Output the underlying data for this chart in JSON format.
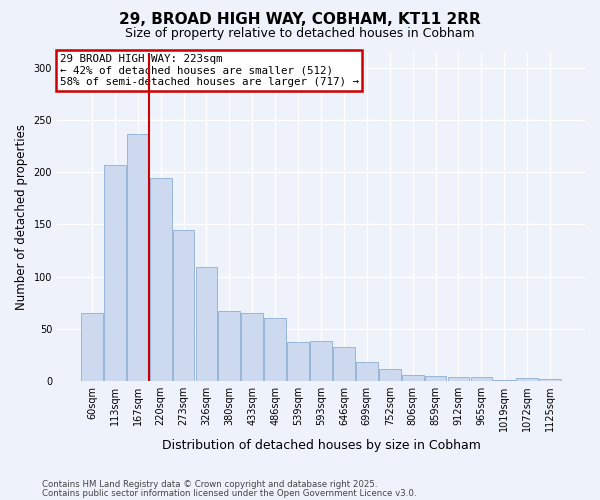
{
  "title1": "29, BROAD HIGH WAY, COBHAM, KT11 2RR",
  "title2": "Size of property relative to detached houses in Cobham",
  "xlabel": "Distribution of detached houses by size in Cobham",
  "ylabel": "Number of detached properties",
  "categories": [
    "60sqm",
    "113sqm",
    "167sqm",
    "220sqm",
    "273sqm",
    "326sqm",
    "380sqm",
    "433sqm",
    "486sqm",
    "539sqm",
    "593sqm",
    "646sqm",
    "699sqm",
    "752sqm",
    "806sqm",
    "859sqm",
    "912sqm",
    "965sqm",
    "1019sqm",
    "1072sqm",
    "1125sqm"
  ],
  "values": [
    65,
    207,
    237,
    195,
    145,
    109,
    67,
    65,
    60,
    37,
    38,
    32,
    18,
    11,
    6,
    5,
    4,
    4,
    1,
    3,
    2
  ],
  "bar_color": "#ccd9ee",
  "bar_edge_color": "#8eadd4",
  "red_line_x": 2.5,
  "annotation_line1": "29 BROAD HIGH WAY: 223sqm",
  "annotation_line2": "← 42% of detached houses are smaller (512)",
  "annotation_line3": "58% of semi-detached houses are larger (717) →",
  "annotation_box_color": "#ffffff",
  "annotation_box_edge": "#cc0000",
  "red_line_color": "#cc0000",
  "ylim": [
    0,
    315
  ],
  "yticks": [
    0,
    50,
    100,
    150,
    200,
    250,
    300
  ],
  "footnote1": "Contains HM Land Registry data © Crown copyright and database right 2025.",
  "footnote2": "Contains public sector information licensed under the Open Government Licence v3.0.",
  "bg_color": "#eef2fb"
}
